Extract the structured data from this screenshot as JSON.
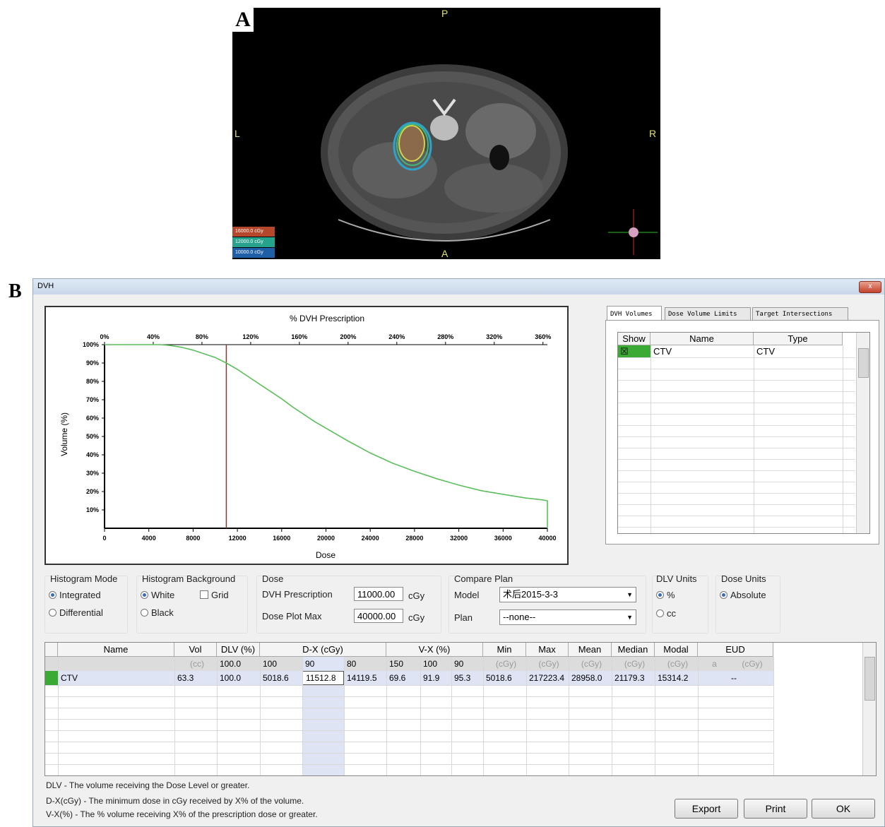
{
  "panel_a": {
    "letter": "A",
    "orient": {
      "top": "P",
      "left": "L",
      "right": "R",
      "bottom": "A"
    },
    "dose_legend": [
      {
        "label": "16000.0 cGy",
        "color": "#b5482c"
      },
      {
        "label": "12000.0 cGy",
        "color": "#27a28c"
      },
      {
        "label": "10000.0 cGy",
        "color": "#1f5fa8"
      }
    ]
  },
  "panel_b": {
    "letter": "B"
  },
  "window": {
    "title": "DVH",
    "close_label": "x"
  },
  "chart_data": {
    "type": "line",
    "title": "% DVH Prescription",
    "xlabel": "Dose",
    "ylabel": "Volume (%)",
    "x_ticks": [
      "0",
      "4000",
      "8000",
      "12000",
      "16000",
      "20000",
      "24000",
      "28000",
      "32000",
      "36000",
      "40000"
    ],
    "x_top_ticks": [
      "0%",
      "40%",
      "80%",
      "120%",
      "160%",
      "200%",
      "240%",
      "280%",
      "320%",
      "360%"
    ],
    "y_ticks": [
      "10%",
      "20%",
      "30%",
      "40%",
      "50%",
      "60%",
      "70%",
      "80%",
      "90%",
      "100%"
    ],
    "xlim": [
      0,
      40000
    ],
    "ylim": [
      0,
      100
    ],
    "prescription_line_x": 11000,
    "series": [
      {
        "color": "#5cbf5c",
        "x": [
          0,
          5018,
          6000,
          7000,
          8000,
          9000,
          10000,
          11000,
          12000,
          13000,
          14000,
          15000,
          16000,
          17000,
          18000,
          19000,
          20000,
          22000,
          24000,
          26000,
          28000,
          30000,
          32000,
          34000,
          36000,
          38000,
          39500,
          40000
        ],
        "y": [
          100,
          100,
          99.5,
          98.5,
          97,
          95,
          93,
          90,
          86.5,
          82.5,
          78.5,
          74.5,
          70.5,
          66,
          62,
          58,
          54.5,
          47.5,
          41,
          35.5,
          31,
          27,
          23.5,
          20.5,
          18.5,
          16.5,
          15.5,
          15
        ]
      }
    ]
  },
  "tabs": [
    {
      "label": "DVH Volumes",
      "active": true
    },
    {
      "label": "Dose Volume Limits",
      "active": false
    },
    {
      "label": "Target Intersections",
      "active": false
    }
  ],
  "volumes_table": {
    "headers": [
      "Show",
      "Name",
      "Type"
    ],
    "rows": [
      {
        "show": "☒",
        "name": "CTV",
        "type": "CTV"
      }
    ]
  },
  "controls": {
    "histogram_mode": {
      "label": "Histogram Mode",
      "options": [
        "Integrated",
        "Differential"
      ],
      "selected": "Integrated"
    },
    "histogram_background": {
      "label": "Histogram Background",
      "options": [
        "White",
        "Black"
      ],
      "selected": "White",
      "grid_label": "Grid"
    },
    "dose": {
      "label": "Dose",
      "prescription_label": "DVH Prescription",
      "prescription_value": "11000.00",
      "plot_max_label": "Dose Plot Max",
      "plot_max_value": "40000.00",
      "unit": "cGy"
    },
    "compare_plan": {
      "label": "Compare Plan",
      "model_label": "Model",
      "model_value": "术后2015-3-3",
      "plan_label": "Plan",
      "plan_value": "--none--"
    },
    "dlv_units": {
      "label": "DLV Units",
      "options": [
        "%",
        "cc"
      ],
      "selected": "%"
    },
    "dose_units": {
      "label": "Dose Units",
      "options": [
        "Absolute"
      ],
      "selected": "Absolute"
    }
  },
  "stats_table": {
    "headers": [
      "Name",
      "Vol",
      "DLV (%)",
      "D-X (cGy)",
      "V-X (%)",
      "Min",
      "Max",
      "Mean",
      "Median",
      "Modal",
      "EUD"
    ],
    "subheader": [
      "",
      "(cc)",
      "100.0",
      "100",
      "90",
      "80",
      "150",
      "100",
      "90",
      "(cGy)",
      "(cGy)",
      "(cGy)",
      "(cGy)",
      "(cGy)",
      "a",
      "(cGy)"
    ],
    "row": [
      "CTV",
      "63.3",
      "100.0",
      "5018.6",
      "11512.8",
      "14119.5",
      "69.6",
      "91.9",
      "95.3",
      "5018.6",
      "217223.4",
      "28958.0",
      "21179.3",
      "15314.2",
      "",
      "--"
    ]
  },
  "notes": [
    "DLV - The volume receiving the Dose Level or greater.",
    "D-X(cGy) - The minimum dose in cGy received by X% of the volume.",
    "V-X(%) - The % volume receiving X% of the prescription dose or greater."
  ],
  "buttons": {
    "export": "Export",
    "print": "Print",
    "ok": "OK"
  }
}
